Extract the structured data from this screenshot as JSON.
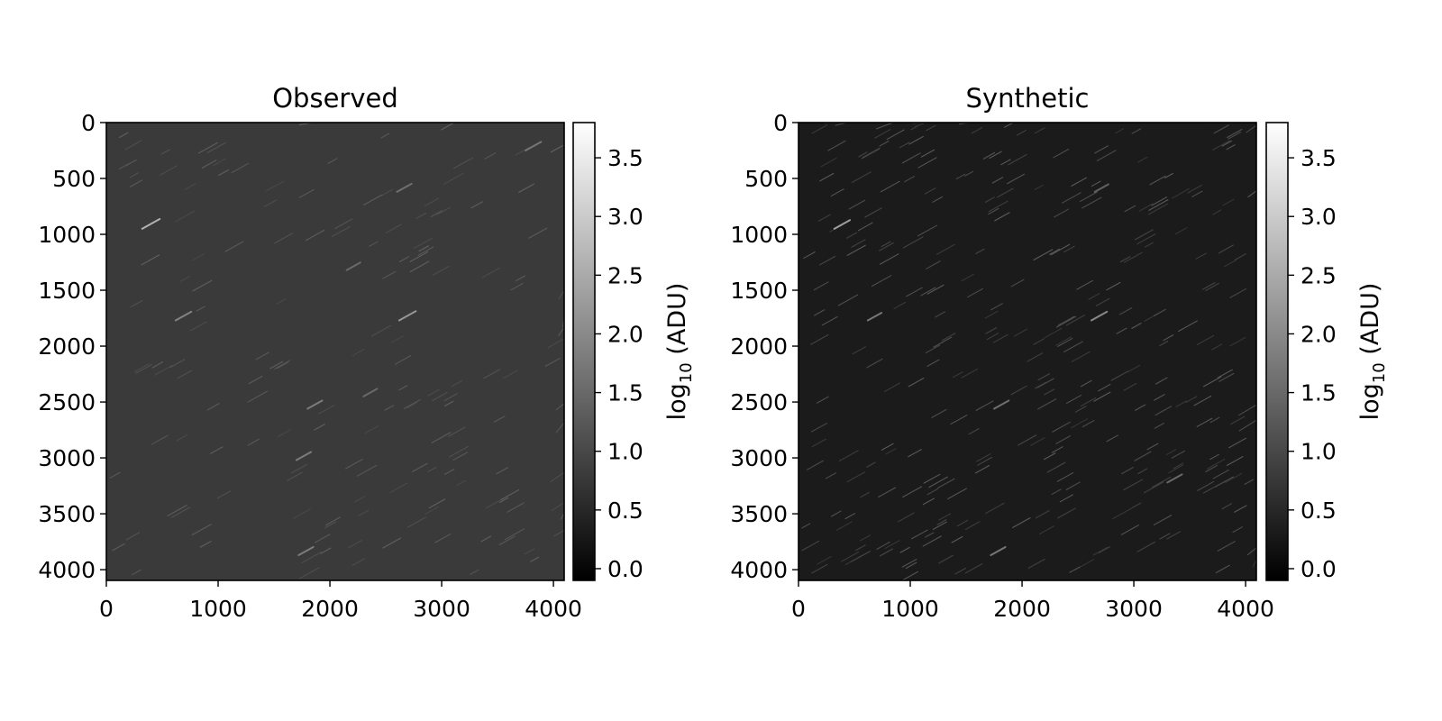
{
  "chart_data": [
    {
      "type": "heatmap",
      "title": "Observed",
      "colormap": "gray",
      "xlim": [
        0,
        4096
      ],
      "ylim": [
        4096,
        0
      ],
      "x_ticks": [
        0,
        1000,
        2000,
        3000,
        4000
      ],
      "y_ticks": [
        0,
        500,
        1000,
        1500,
        2000,
        2500,
        3000,
        3500,
        4000
      ],
      "x_tick_labels": [
        "0",
        "1000",
        "2000",
        "3000",
        "4000"
      ],
      "y_tick_labels": [
        "0",
        "500",
        "1000",
        "1500",
        "2000",
        "2500",
        "3000",
        "3500",
        "4000"
      ],
      "background_level": 0.85,
      "background_color": "#3a3a3a",
      "colorbar": {
        "label_main": "log",
        "label_sub": "10",
        "label_rest": " (ADU)",
        "range": [
          -0.1,
          3.8
        ],
        "ticks": [
          0.0,
          0.5,
          1.0,
          1.5,
          2.0,
          2.5,
          3.0,
          3.5
        ],
        "tick_labels": [
          "0.0",
          "0.5",
          "1.0",
          "1.5",
          "2.0",
          "2.5",
          "3.0",
          "3.5"
        ]
      },
      "streaks": [
        {
          "x": 320,
          "y": 950,
          "len": 180,
          "v": 2.6
        },
        {
          "x": 620,
          "y": 1770,
          "len": 160,
          "v": 1.9
        },
        {
          "x": 2620,
          "y": 1770,
          "len": 170,
          "v": 2.2
        },
        {
          "x": 1800,
          "y": 2560,
          "len": 150,
          "v": 1.8
        },
        {
          "x": 1700,
          "y": 3020,
          "len": 150,
          "v": 1.8
        },
        {
          "x": 1720,
          "y": 3870,
          "len": 150,
          "v": 1.8
        },
        {
          "x": 2600,
          "y": 620,
          "len": 150,
          "v": 1.6
        },
        {
          "x": 3750,
          "y": 250,
          "len": 160,
          "v": 1.7
        },
        {
          "x": 2150,
          "y": 1320,
          "len": 140,
          "v": 1.5
        },
        {
          "x": 2300,
          "y": 2450,
          "len": 140,
          "v": 1.5
        }
      ],
      "faint_streak_count": 160,
      "faint_streak_level": [
        1.0,
        1.4
      ],
      "seed": 17
    },
    {
      "type": "heatmap",
      "title": "Synthetic",
      "colormap": "gray",
      "xlim": [
        0,
        4096
      ],
      "ylim": [
        4096,
        0
      ],
      "x_ticks": [
        0,
        1000,
        2000,
        3000,
        4000
      ],
      "y_ticks": [
        0,
        500,
        1000,
        1500,
        2000,
        2500,
        3000,
        3500,
        4000
      ],
      "x_tick_labels": [
        "0",
        "1000",
        "2000",
        "3000",
        "4000"
      ],
      "y_tick_labels": [
        "0",
        "500",
        "1000",
        "1500",
        "2000",
        "2500",
        "3000",
        "3500",
        "4000"
      ],
      "background_level": 0.35,
      "background_color": "#1b1b1b",
      "colorbar": {
        "label_main": "log",
        "label_sub": "10",
        "label_rest": " (ADU)",
        "range": [
          -0.1,
          3.8
        ],
        "ticks": [
          0.0,
          0.5,
          1.0,
          1.5,
          2.0,
          2.5,
          3.0,
          3.5
        ],
        "tick_labels": [
          "0.0",
          "0.5",
          "1.0",
          "1.5",
          "2.0",
          "2.5",
          "3.0",
          "3.5"
        ]
      },
      "streaks": [
        {
          "x": 320,
          "y": 950,
          "len": 160,
          "v": 2.3
        },
        {
          "x": 620,
          "y": 1770,
          "len": 140,
          "v": 1.7
        },
        {
          "x": 2620,
          "y": 1770,
          "len": 160,
          "v": 2.0
        },
        {
          "x": 1750,
          "y": 2560,
          "len": 150,
          "v": 1.6
        },
        {
          "x": 1720,
          "y": 3870,
          "len": 150,
          "v": 1.7
        },
        {
          "x": 3300,
          "y": 3220,
          "len": 150,
          "v": 1.5
        },
        {
          "x": 2650,
          "y": 620,
          "len": 140,
          "v": 1.4
        }
      ],
      "faint_streak_count": 320,
      "faint_streak_level": [
        0.7,
        1.3
      ],
      "seed": 29
    }
  ]
}
